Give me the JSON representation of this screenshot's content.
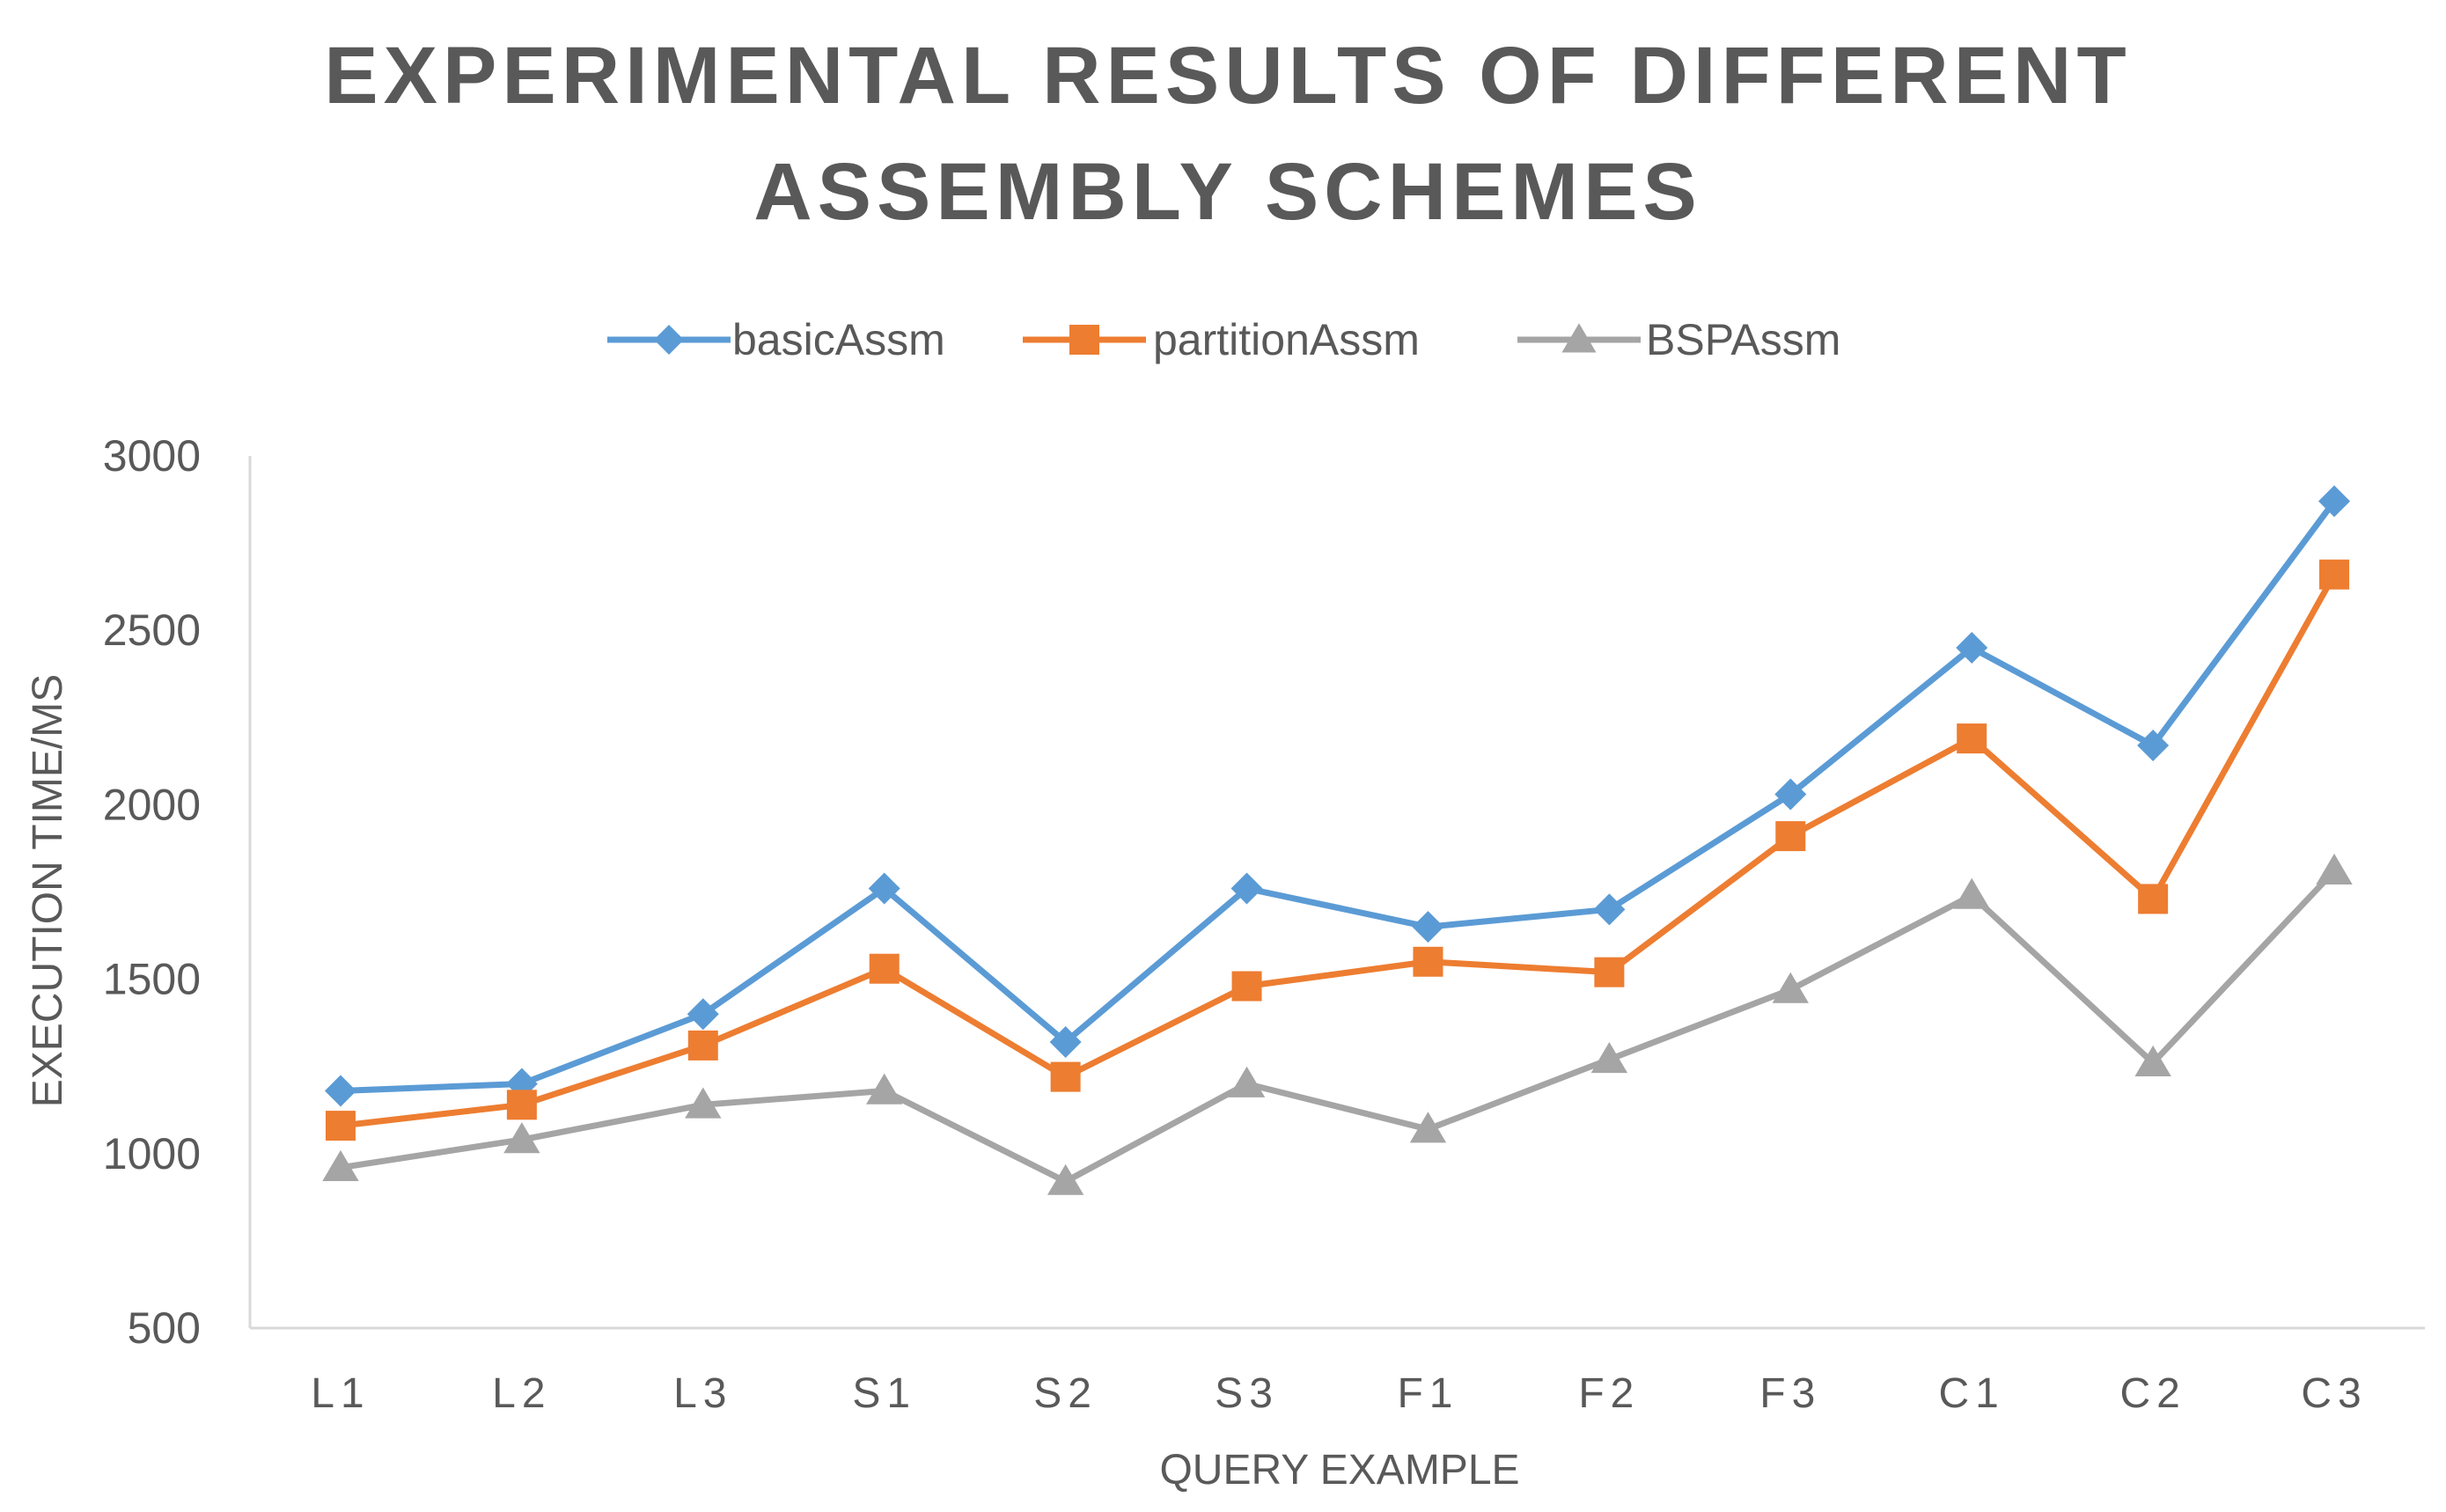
{
  "chart_data": {
    "type": "line",
    "title": [
      "EXPERIMENTAL RESULTS OF DIFFERENT",
      "ASSEMBLY SCHEMES"
    ],
    "xlabel": "QUERY EXAMPLE",
    "ylabel": "EXECUTION TIME/MS",
    "ylim": [
      500,
      3000
    ],
    "yticks": [
      500,
      1000,
      1500,
      2000,
      2500,
      3000
    ],
    "grid": false,
    "legend_position": "top",
    "categories": [
      "L1",
      "L2",
      "L3",
      "S1",
      "S2",
      "S3",
      "F1",
      "F2",
      "F3",
      "C1",
      "C2",
      "C3"
    ],
    "series": [
      {
        "name": "basicAssm",
        "color": "#5B9BD5",
        "marker": "diamond",
        "values": [
          1180,
          1200,
          1400,
          1760,
          1320,
          1760,
          1650,
          1700,
          2030,
          2450,
          2170,
          2870
        ]
      },
      {
        "name": "partitionAssm",
        "color": "#ED7D31",
        "marker": "square",
        "values": [
          1080,
          1140,
          1310,
          1530,
          1220,
          1480,
          1550,
          1520,
          1910,
          2190,
          1730,
          2660
        ]
      },
      {
        "name": "BSPAssm",
        "color": "#A5A5A5",
        "marker": "triangle",
        "values": [
          960,
          1040,
          1140,
          1180,
          920,
          1200,
          1070,
          1270,
          1470,
          1740,
          1260,
          1810
        ]
      }
    ]
  }
}
